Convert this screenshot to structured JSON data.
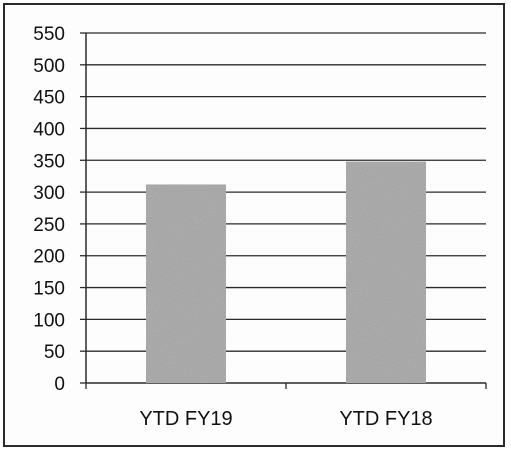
{
  "chart_data": {
    "type": "bar",
    "categories": [
      "YTD FY19",
      "YTD FY18"
    ],
    "values": [
      312,
      348
    ],
    "ylim": [
      0,
      550
    ],
    "yticks": [
      0,
      50,
      100,
      150,
      200,
      250,
      300,
      350,
      400,
      450,
      500,
      550
    ],
    "title": "",
    "xlabel": "",
    "ylabel": "",
    "grid": true,
    "legend": "none",
    "colors": {
      "bar": "#a6a6a6",
      "grid": "#2b2b2b",
      "axis": "#2b2b2b"
    }
  }
}
